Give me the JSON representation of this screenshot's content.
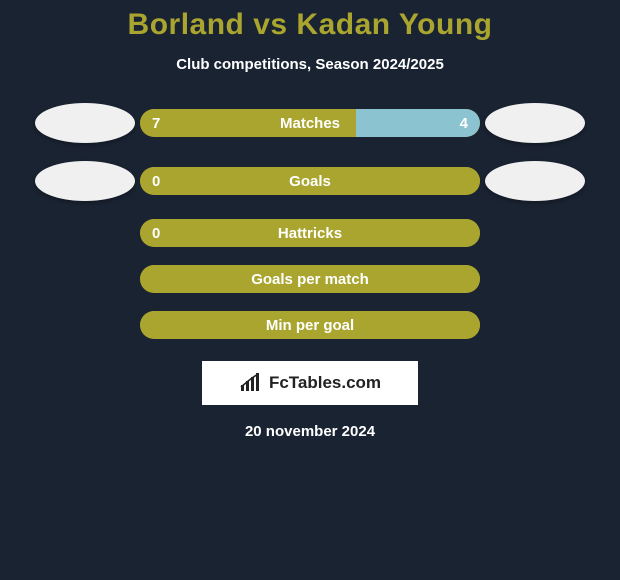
{
  "header": {
    "title": "Borland vs Kadan Young",
    "subtitle": "Club competitions, Season 2024/2025",
    "title_color": "#a9a52f",
    "subtitle_color": "#ffffff",
    "title_fontsize": 30,
    "subtitle_fontsize": 15
  },
  "background_color": "#1a2332",
  "bar_geometry": {
    "track_width": 340,
    "track_height": 28,
    "border_radius": 14
  },
  "stats": [
    {
      "label": "Matches",
      "left_value": "7",
      "right_value": "4",
      "left_pct": 63.6,
      "right_pct": 36.4,
      "left_color": "#a9a52f",
      "right_color": "#8bc3d1",
      "track_bg": "#a9a52f",
      "show_left_photo": true,
      "show_right_photo": true
    },
    {
      "label": "Goals",
      "left_value": "0",
      "right_value": "",
      "left_pct": 100,
      "right_pct": 0,
      "left_color": "#a9a52f",
      "right_color": "#8bc3d1",
      "track_bg": "#a9a52f",
      "show_left_photo": true,
      "show_right_photo": true
    },
    {
      "label": "Hattricks",
      "left_value": "0",
      "right_value": "",
      "left_pct": 100,
      "right_pct": 0,
      "left_color": "#a9a52f",
      "right_color": "#8bc3d1",
      "track_bg": "#a9a52f",
      "show_left_photo": false,
      "show_right_photo": false
    },
    {
      "label": "Goals per match",
      "left_value": "",
      "right_value": "",
      "left_pct": 100,
      "right_pct": 0,
      "left_color": "#a9a52f",
      "right_color": "#8bc3d1",
      "track_bg": "#a9a52f",
      "show_left_photo": false,
      "show_right_photo": false
    },
    {
      "label": "Min per goal",
      "left_value": "",
      "right_value": "",
      "left_pct": 100,
      "right_pct": 0,
      "left_color": "#a9a52f",
      "right_color": "#8bc3d1",
      "track_bg": "#a9a52f",
      "show_left_photo": false,
      "show_right_photo": false
    }
  ],
  "footer": {
    "logo_text": "FcTables.com",
    "date": "20 november 2024",
    "logo_bg": "#ffffff",
    "logo_text_color": "#222222"
  }
}
